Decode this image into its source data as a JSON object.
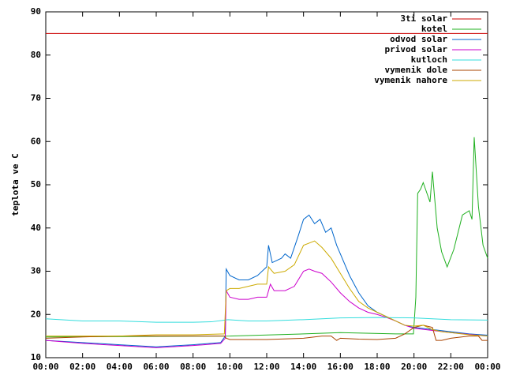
{
  "chart_data": {
    "type": "line",
    "ylabel": "teplota ve C",
    "xlim": [
      0,
      24
    ],
    "ylim": [
      10,
      90
    ],
    "yticks": [
      10,
      20,
      30,
      40,
      50,
      60,
      70,
      80,
      90
    ],
    "xticks": [
      {
        "value": 0,
        "label": "00:00"
      },
      {
        "value": 2,
        "label": "02:00"
      },
      {
        "value": 4,
        "label": "04:00"
      },
      {
        "value": 6,
        "label": "06:00"
      },
      {
        "value": 8,
        "label": "08:00"
      },
      {
        "value": 10,
        "label": "10:00"
      },
      {
        "value": 12,
        "label": "12:00"
      },
      {
        "value": 14,
        "label": "14:00"
      },
      {
        "value": 16,
        "label": "16:00"
      },
      {
        "value": 18,
        "label": "18:00"
      },
      {
        "value": 20,
        "label": "20:00"
      },
      {
        "value": 22,
        "label": "22:00"
      },
      {
        "value": 24,
        "label": "00:00"
      }
    ],
    "legend": "upper right",
    "series": [
      {
        "name": "3ti solar",
        "color": "#cc0000",
        "x": [
          0,
          24
        ],
        "values": [
          85,
          85
        ]
      },
      {
        "name": "kotel",
        "color": "#1fb01f",
        "x": [
          0,
          10,
          14,
          16,
          19,
          19.9,
          19.97,
          20.1,
          20.2,
          20.36,
          20.5,
          20.87,
          21.0,
          21.26,
          21.5,
          21.8,
          22.16,
          22.63,
          23.0,
          23.15,
          23.27,
          23.5,
          23.75,
          24
        ],
        "values": [
          14.8,
          15,
          15.5,
          15.8,
          15.5,
          15.5,
          15.5,
          24,
          48,
          49,
          50.5,
          46,
          53,
          40,
          34.5,
          31,
          35,
          43,
          44,
          42,
          61,
          45,
          36,
          33
        ]
      },
      {
        "name": "odvod solar",
        "color": "#0066cc",
        "x": [
          0,
          2,
          4,
          6,
          8,
          9.5,
          9.75,
          9.8,
          10,
          10.5,
          11,
          11.5,
          12,
          12.1,
          12.3,
          12.8,
          13,
          13.3,
          13.7,
          14,
          14.3,
          14.6,
          14.9,
          15.2,
          15.5,
          15.8,
          16,
          16.5,
          17,
          17.5,
          18,
          18.5,
          19,
          19.5,
          20,
          21,
          22,
          23,
          24
        ],
        "values": [
          14,
          13.5,
          13,
          12.5,
          13,
          13.5,
          15,
          30.5,
          29,
          28,
          28,
          29,
          31,
          36,
          32,
          33,
          34,
          33,
          38,
          42,
          43,
          41,
          42,
          39,
          40,
          36,
          34,
          29,
          25,
          22,
          20.5,
          19.5,
          18.5,
          17.5,
          17,
          16.5,
          16,
          15.5,
          15.2
        ]
      },
      {
        "name": "privod solar",
        "color": "#cc00cc",
        "x": [
          0,
          2,
          4,
          6,
          8,
          9.5,
          9.75,
          9.8,
          10,
          10.5,
          11,
          11.5,
          12,
          12.2,
          12.4,
          13,
          13.5,
          14,
          14.3,
          14.6,
          15,
          15.5,
          16,
          16.5,
          17,
          17.5,
          18,
          18.5,
          19,
          19.5,
          20,
          21,
          22,
          23,
          24
        ],
        "values": [
          14,
          13.3,
          12.8,
          12.3,
          12.8,
          13.3,
          14.5,
          25.5,
          24,
          23.5,
          23.5,
          24,
          24,
          27,
          25.5,
          25.5,
          26.5,
          30,
          30.5,
          30,
          29.5,
          27.5,
          25,
          23,
          21.5,
          20.5,
          20,
          19.3,
          18.5,
          17.5,
          16.8,
          16.3,
          15.8,
          15.4,
          15
        ]
      },
      {
        "name": "kutloch",
        "color": "#33dddd",
        "x": [
          0,
          2,
          4,
          6,
          8,
          9,
          9.9,
          11,
          12,
          14,
          16,
          18,
          20,
          22,
          24
        ],
        "values": [
          19,
          18.5,
          18.5,
          18.2,
          18.2,
          18.3,
          18.8,
          18.5,
          18.5,
          18.8,
          19.2,
          19.3,
          19.2,
          18.8,
          18.7
        ]
      },
      {
        "name": "vymenik dole",
        "color": "#aa4400",
        "x": [
          0,
          2,
          4,
          6,
          8,
          9.7,
          9.8,
          10,
          12,
          14,
          15,
          15.5,
          15.8,
          16,
          17,
          18,
          19,
          19.5,
          20,
          20.5,
          21,
          21.2,
          21.5,
          22,
          23,
          23.5,
          23.7,
          24
        ],
        "values": [
          14.5,
          14.8,
          15,
          15,
          15,
          15,
          14.5,
          14.2,
          14.2,
          14.5,
          15,
          15,
          14,
          14.5,
          14.3,
          14.2,
          14.5,
          15.5,
          17,
          17.5,
          17,
          14,
          14,
          14.5,
          15,
          15,
          14,
          14
        ]
      },
      {
        "name": "vymenik nahore",
        "color": "#ccaa00",
        "x": [
          0,
          2,
          4,
          6,
          8,
          9.7,
          9.8,
          10,
          10.5,
          11,
          11.5,
          12,
          12.1,
          12.4,
          13,
          13.5,
          14,
          14.3,
          14.6,
          15,
          15.5,
          16,
          16.5,
          17,
          17.5,
          18,
          18.5,
          19,
          19.5,
          20,
          20.5,
          21,
          21.5,
          22,
          23,
          24
        ],
        "values": [
          15,
          15,
          15,
          15.3,
          15.3,
          15.5,
          25.5,
          26,
          26,
          26.5,
          27,
          27,
          31,
          29.5,
          30,
          31.5,
          36,
          36.5,
          37,
          35.5,
          33,
          29.5,
          26,
          23,
          21.5,
          20.5,
          19.5,
          18.5,
          17.5,
          17.3,
          17.5,
          16.5,
          16,
          15.8,
          15.3,
          15
        ]
      }
    ]
  }
}
